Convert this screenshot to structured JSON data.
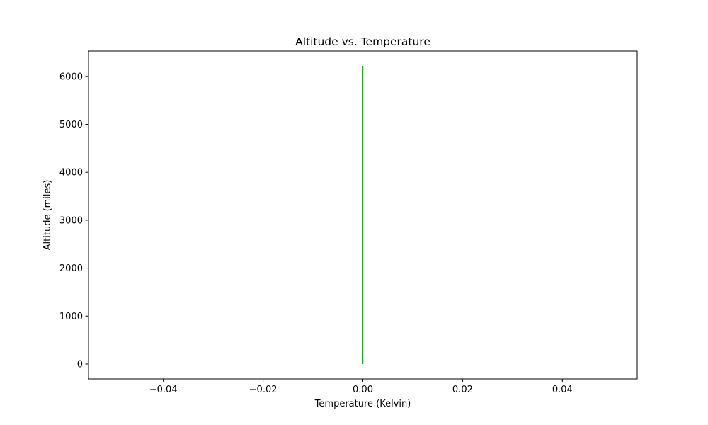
{
  "chart_data": {
    "type": "line",
    "title": "Altitude vs. Temperature",
    "xlabel": "Temperature (Kelvin)",
    "ylabel": "Altitude (miles)",
    "xlim": [
      -0.055,
      0.055
    ],
    "ylim": [
      -311,
      6529
    ],
    "xticks": [
      -0.04,
      -0.02,
      0.0,
      0.02,
      0.04
    ],
    "xtick_labels": [
      "−0.04",
      "−0.02",
      "0.00",
      "0.02",
      "0.04"
    ],
    "yticks": [
      0,
      1000,
      2000,
      3000,
      4000,
      5000,
      6000
    ],
    "ytick_labels": [
      "0",
      "1000",
      "2000",
      "3000",
      "4000",
      "5000",
      "6000"
    ],
    "grid": false,
    "series": [
      {
        "color": "#2ca02c",
        "x": [
          0,
          0
        ],
        "y": [
          0,
          6218
        ]
      }
    ]
  }
}
